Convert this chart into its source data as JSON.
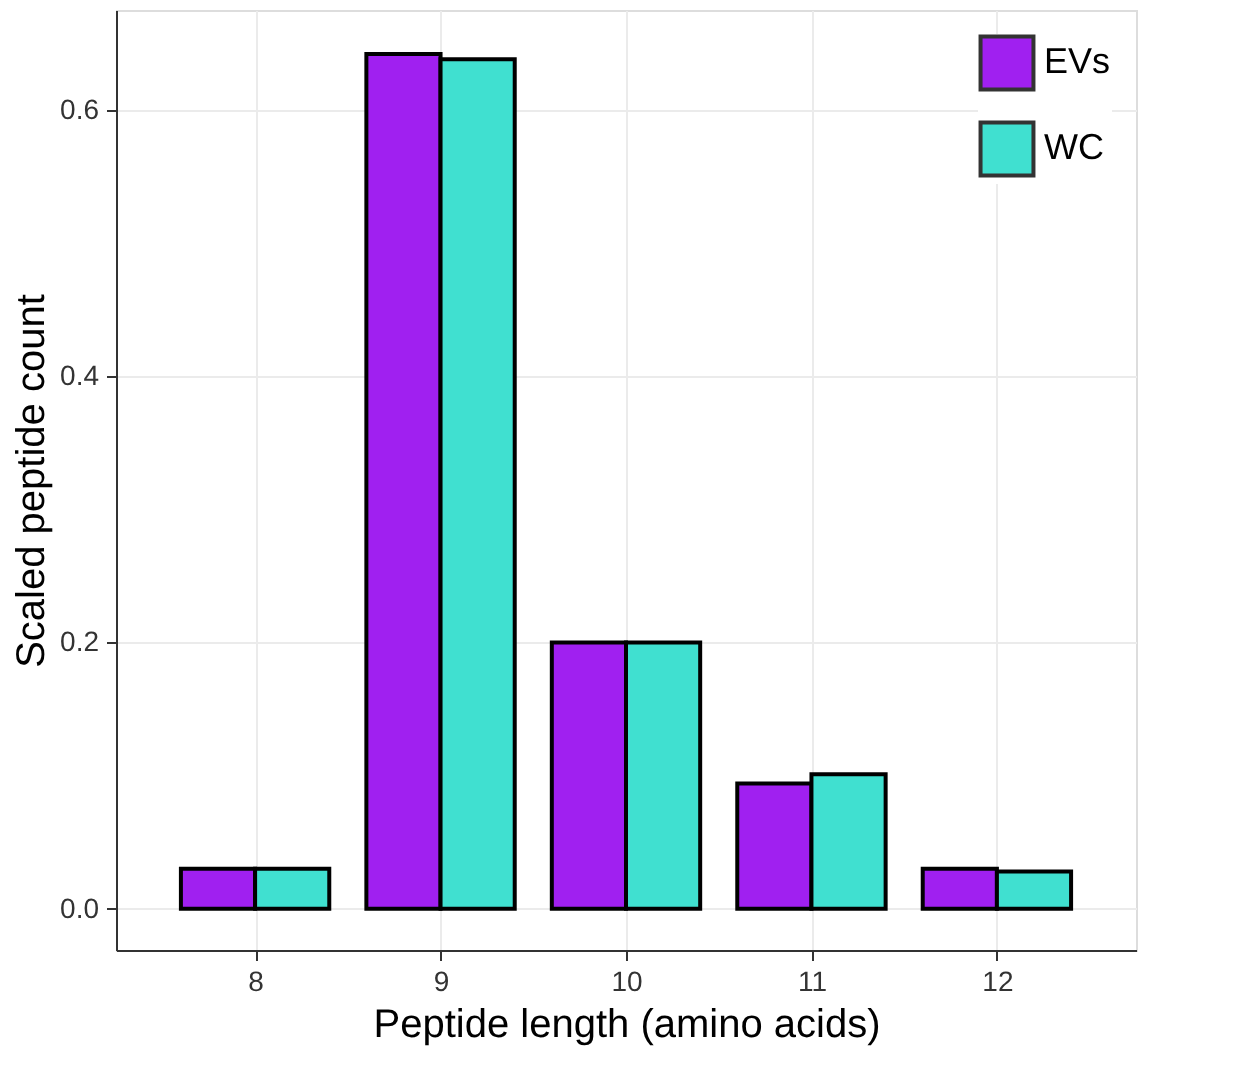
{
  "chart_data": {
    "type": "bar",
    "xlabel": "Peptide length (amino acids)",
    "ylabel": "Scaled peptide count",
    "x": [
      8,
      9,
      10,
      11,
      12
    ],
    "series": [
      {
        "name": "EVs",
        "color": "#a020f0",
        "values": [
          0.03,
          0.642,
          0.2,
          0.094,
          0.03
        ]
      },
      {
        "name": "WC",
        "color": "#40e0d0",
        "values": [
          0.03,
          0.638,
          0.2,
          0.101,
          0.028
        ]
      }
    ],
    "xlim": [
      7.25,
      12.75
    ],
    "xticks": [
      8,
      9,
      10,
      11,
      12
    ],
    "ylim": [
      -0.031,
      0.675
    ],
    "yticks": [
      {
        "value": 0,
        "label": "0.0"
      },
      {
        "value": 0.2,
        "label": "0.2"
      },
      {
        "value": 0.4,
        "label": "0.4"
      },
      {
        "value": 0.6,
        "label": "0.6"
      }
    ],
    "grid": true,
    "legend": "top right"
  }
}
